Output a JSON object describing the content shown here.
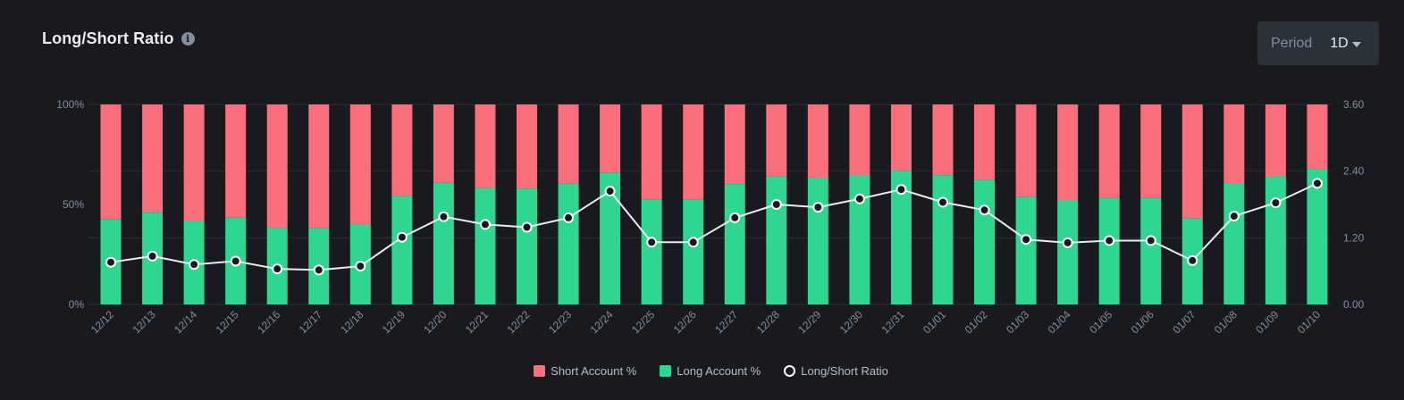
{
  "header": {
    "title": "Long/Short Ratio",
    "info_icon": "info-icon"
  },
  "period": {
    "label": "Period",
    "value": "1D",
    "icon": "chevron-down-icon"
  },
  "legend": {
    "short_label": "Short Account %",
    "long_label": "Long Account %",
    "ratio_label": "Long/Short Ratio"
  },
  "colors": {
    "short": "#fb6e7c",
    "long": "#2ed690",
    "ratio_line": "#eaecef",
    "background": "#181a20",
    "grid": "#2b2f36",
    "tick_text": "#848e9c"
  },
  "chart_data": {
    "type": "bar",
    "stacked": true,
    "title": "Long/Short Ratio",
    "categories": [
      "12/12",
      "12/13",
      "12/14",
      "12/15",
      "12/16",
      "12/17",
      "12/18",
      "12/19",
      "12/20",
      "12/21",
      "12/22",
      "12/23",
      "12/24",
      "12/25",
      "12/26",
      "12/27",
      "12/28",
      "12/29",
      "12/30",
      "12/31",
      "01/01",
      "01/02",
      "01/03",
      "01/04",
      "01/05",
      "01/06",
      "01/07",
      "01/08",
      "01/09",
      "01/10"
    ],
    "series": [
      {
        "name": "Long Account %",
        "axis": "left",
        "values": [
          42.5,
          45.9,
          41.5,
          43.4,
          38.2,
          38.0,
          40.2,
          54.2,
          60.8,
          58.2,
          57.9,
          60.4,
          66.0,
          52.3,
          52.3,
          60.2,
          63.9,
          63.4,
          64.5,
          66.8,
          64.6,
          62.4,
          53.7,
          52.0,
          53.2,
          53.2,
          43.0,
          60.7,
          63.8,
          67.8
        ]
      },
      {
        "name": "Short Account %",
        "axis": "left",
        "values": [
          57.5,
          54.1,
          58.5,
          56.6,
          61.8,
          62.0,
          59.8,
          45.8,
          39.2,
          41.8,
          42.1,
          39.6,
          34.0,
          47.7,
          47.7,
          39.8,
          36.1,
          36.6,
          35.5,
          33.2,
          35.4,
          37.6,
          46.3,
          48.0,
          46.8,
          46.8,
          57.0,
          39.3,
          36.2,
          32.2
        ]
      },
      {
        "name": "Long/Short Ratio",
        "type": "line",
        "axis": "right",
        "values": [
          0.76,
          0.87,
          0.72,
          0.78,
          0.64,
          0.62,
          0.69,
          1.21,
          1.58,
          1.44,
          1.39,
          1.56,
          2.04,
          1.12,
          1.12,
          1.56,
          1.8,
          1.75,
          1.9,
          2.07,
          1.84,
          1.7,
          1.17,
          1.11,
          1.15,
          1.15,
          0.79,
          1.59,
          1.83,
          2.18
        ]
      }
    ],
    "y_left": {
      "ticks": [
        "100%",
        "50%",
        "0%"
      ],
      "ylim": [
        0,
        100
      ]
    },
    "y_right": {
      "ticks": [
        "3.60",
        "2.40",
        "1.20",
        "0.00"
      ],
      "ylim": [
        0,
        3.6
      ]
    },
    "legend_position": "bottom-center",
    "grid": true
  }
}
